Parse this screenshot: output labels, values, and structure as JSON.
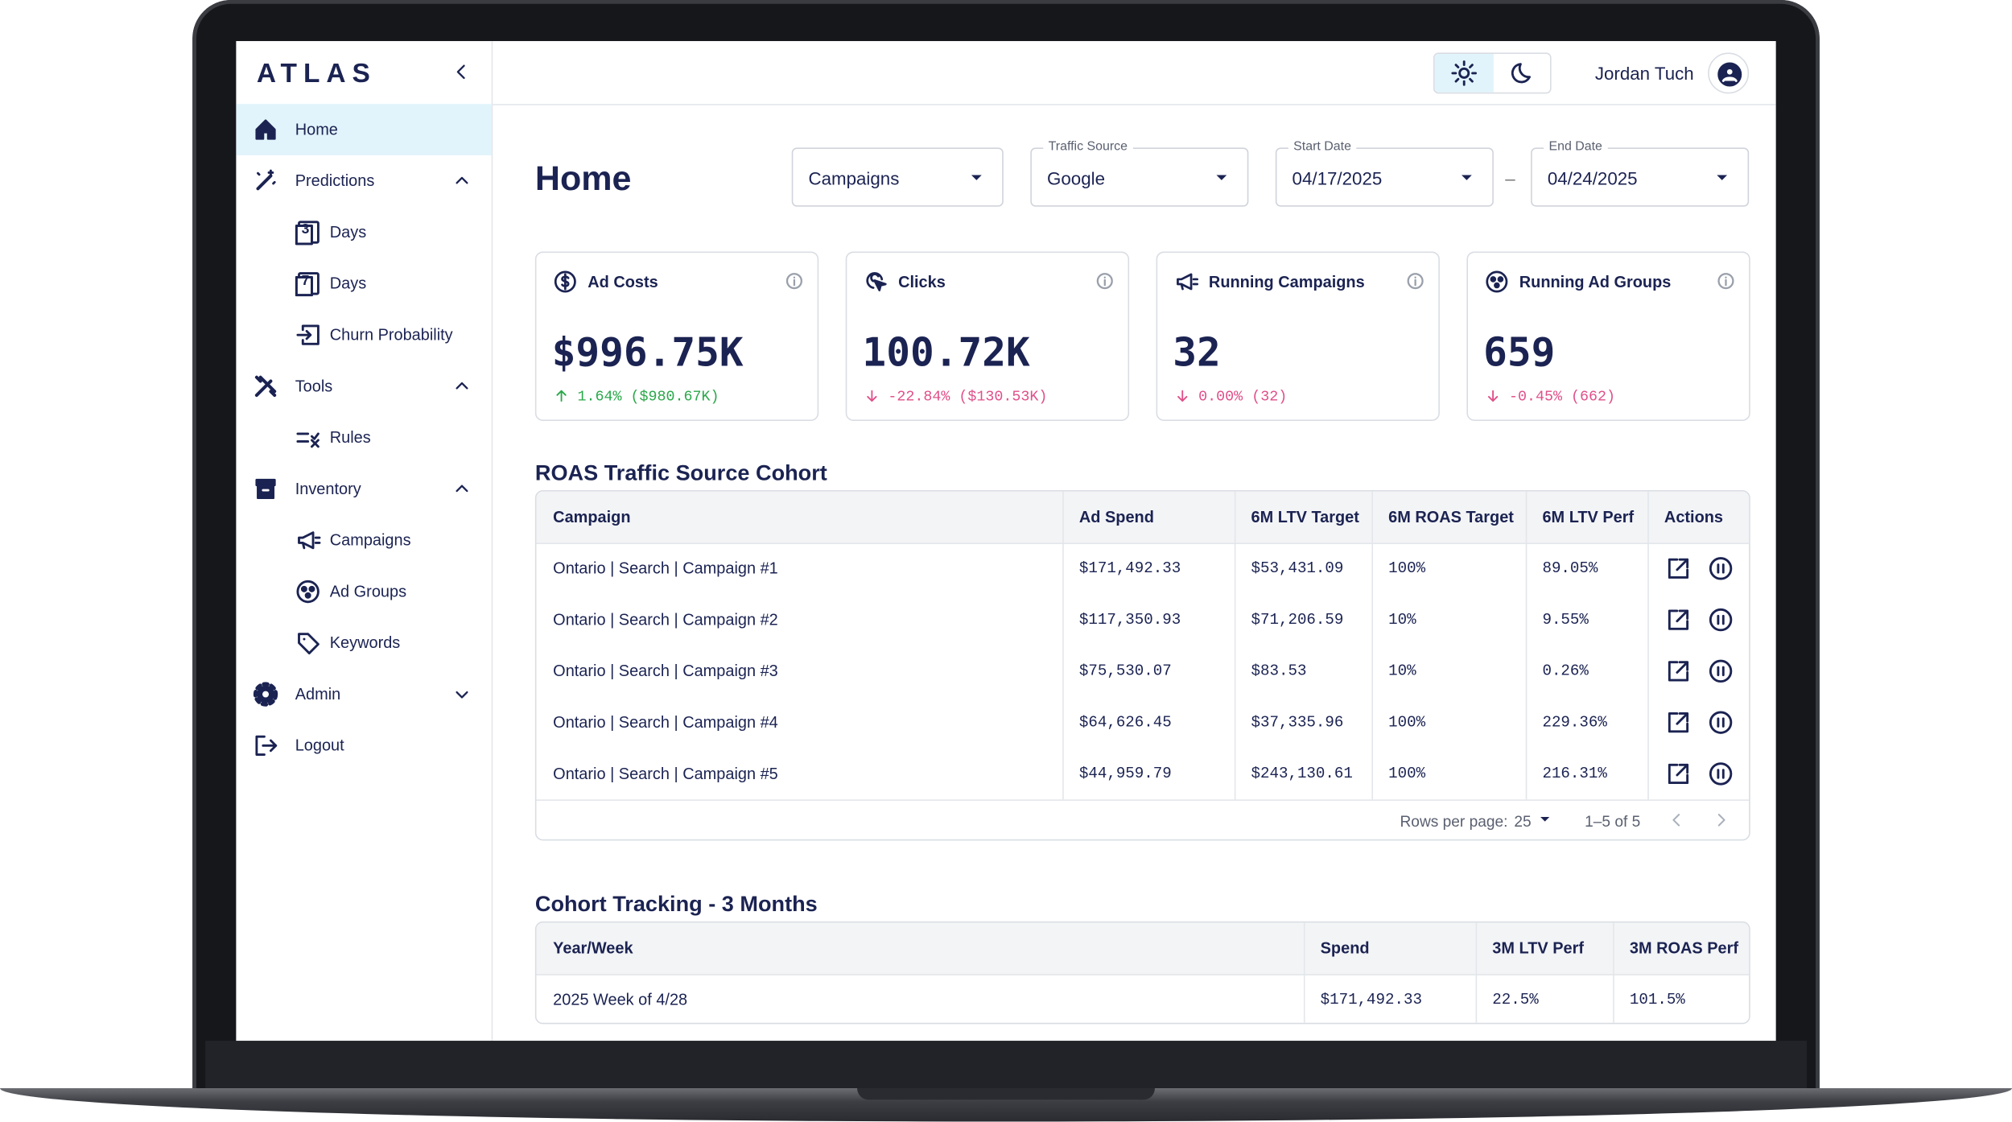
{
  "brand": "ATLAS",
  "user": "Jordan Tuch",
  "sidebar": [
    {
      "label": "Home",
      "active": true
    },
    {
      "label": "Predictions",
      "expanded": true
    },
    {
      "label": "Days",
      "sub": true,
      "icon_text": "3"
    },
    {
      "label": "Days",
      "sub": true,
      "icon_text": "7"
    },
    {
      "label": "Churn Probability",
      "sub": true
    },
    {
      "label": "Tools",
      "expanded": true
    },
    {
      "label": "Rules",
      "sub": true
    },
    {
      "label": "Inventory",
      "expanded": true
    },
    {
      "label": "Campaigns",
      "sub": true
    },
    {
      "label": "Ad Groups",
      "sub": true
    },
    {
      "label": "Keywords",
      "sub": true
    },
    {
      "label": "Admin",
      "expanded": false
    },
    {
      "label": "Logout"
    }
  ],
  "page_title": "Home",
  "filters": [
    {
      "value": "Campaigns"
    },
    {
      "label": "Traffic Source",
      "value": "Google"
    },
    {
      "label": "Start Date",
      "value": "04/17/2025"
    },
    {
      "label": "End Date",
      "value": "04/24/2025"
    }
  ],
  "date_separator": "–",
  "kpis": [
    {
      "title": "Ad Costs",
      "value": "$996.75K",
      "change": "1.64% ($980.67K)",
      "trend": "up"
    },
    {
      "title": "Clicks",
      "value": "100.72K",
      "change": "-22.84% ($130.53K)",
      "trend": "down"
    },
    {
      "title": "Running Campaigns",
      "value": "32",
      "change": "0.00% (32)",
      "trend": "down"
    },
    {
      "title": "Running Ad Groups",
      "value": "659",
      "change": "-0.45% (662)",
      "trend": "down"
    }
  ],
  "roas_table": {
    "title": "ROAS Traffic Source Cohort",
    "columns": [
      "Campaign",
      "Ad Spend",
      "6M LTV Target",
      "6M ROAS Target",
      "6M LTV Perf",
      "Actions"
    ],
    "rows": [
      [
        "Ontario | Search | Campaign #1",
        "$171,492.33",
        "$53,431.09",
        "100%",
        "89.05%"
      ],
      [
        "Ontario | Search | Campaign #2",
        "$117,350.93",
        "$71,206.59",
        "10%",
        "9.55%"
      ],
      [
        "Ontario | Search | Campaign #3",
        "$75,530.07",
        "$83.53",
        "10%",
        "0.26%"
      ],
      [
        "Ontario | Search | Campaign #4",
        "$64,626.45",
        "$37,335.96",
        "100%",
        "229.36%"
      ],
      [
        "Ontario | Search | Campaign #5",
        "$44,959.79",
        "$243,130.61",
        "100%",
        "216.31%"
      ]
    ],
    "rows_per_page_label": "Rows per page:",
    "rows_per_page": "25",
    "range": "1–5 of 5"
  },
  "cohort_table": {
    "title": "Cohort Tracking - 3 Months",
    "columns": [
      "Year/Week",
      "Spend",
      "3M LTV Perf",
      "3M ROAS Perf"
    ],
    "rows": [
      [
        "2025 Week of 4/28",
        "$171,492.33",
        "22.5%",
        "101.5%"
      ]
    ]
  }
}
